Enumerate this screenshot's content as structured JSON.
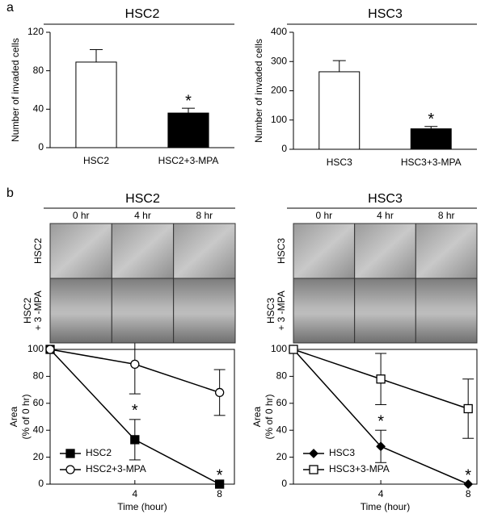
{
  "panel_labels": [
    "a",
    "b"
  ],
  "chart_data": [
    {
      "type": "bar",
      "title": "HSC2",
      "y_label": "Number of invaded cells",
      "categories": [
        "HSC2",
        "HSC2+3-MPA"
      ],
      "values": [
        89,
        36
      ],
      "errors": [
        13,
        5
      ],
      "colors": [
        "#ffffff",
        "#000000"
      ],
      "annotations": [
        null,
        "*"
      ],
      "ylim": [
        0,
        120
      ],
      "yticks": [
        0,
        40,
        80,
        120
      ]
    },
    {
      "type": "bar",
      "title": "HSC3",
      "y_label": "Number of invaded cells",
      "categories": [
        "HSC3",
        "HSC3+3-MPA"
      ],
      "values": [
        265,
        70
      ],
      "errors": [
        38,
        8
      ],
      "colors": [
        "#ffffff",
        "#000000"
      ],
      "annotations": [
        null,
        "*"
      ],
      "ylim": [
        0,
        400
      ],
      "yticks": [
        0,
        100,
        200,
        300,
        400
      ]
    },
    {
      "type": "line",
      "y_label": [
        "Area",
        "(% of 0 hr)"
      ],
      "x_label": "Time (hour)",
      "x": [
        0,
        4,
        8
      ],
      "xlim": [
        0,
        8.7
      ],
      "xticks": [
        4,
        8
      ],
      "ylim": [
        0,
        100
      ],
      "yticks": [
        0,
        20,
        40,
        60,
        80,
        100
      ],
      "legend": "lower left",
      "series": [
        {
          "name": "HSC2",
          "color": "#000000",
          "marker": "square",
          "filled": true,
          "values": [
            100,
            33,
            0
          ],
          "errors": [
            null,
            15,
            null
          ],
          "annotations": [
            null,
            "*",
            "*"
          ]
        },
        {
          "name": "HSC2+3-MPA",
          "color": "#000000",
          "marker": "circle",
          "filled": false,
          "values": [
            100,
            89,
            68
          ],
          "errors": [
            null,
            22,
            17
          ],
          "annotations": [
            null,
            null,
            null
          ]
        }
      ]
    },
    {
      "type": "line",
      "y_label": [
        "Area",
        "(% of 0 hr)"
      ],
      "x_label": "Time (hour)",
      "x": [
        0,
        4,
        8
      ],
      "xlim": [
        0,
        8.4
      ],
      "xticks": [
        4,
        8
      ],
      "ylim": [
        0,
        100
      ],
      "yticks": [
        0,
        20,
        40,
        60,
        80,
        100
      ],
      "legend": "lower left",
      "series": [
        {
          "name": "HSC3",
          "color": "#000000",
          "marker": "diamond",
          "filled": true,
          "values": [
            100,
            28,
            0
          ],
          "errors": [
            null,
            12,
            null
          ],
          "annotations": [
            null,
            "*",
            "*"
          ]
        },
        {
          "name": "HSC3+3-MPA",
          "color": "#000000",
          "marker": "square",
          "filled": false,
          "values": [
            100,
            78,
            56
          ],
          "errors": [
            null,
            19,
            22
          ],
          "annotations": [
            null,
            null,
            null
          ]
        }
      ]
    }
  ],
  "image_panels": [
    {
      "title": "HSC2",
      "columns": [
        "0 hr",
        "4 hr",
        "8 hr"
      ],
      "rows": [
        [
          "HSC2"
        ],
        [
          "HSC2",
          "+ 3 -MPA"
        ]
      ]
    },
    {
      "title": "HSC3",
      "columns": [
        "0 hr",
        "4 hr",
        "8 hr"
      ],
      "rows": [
        [
          "HSC3"
        ],
        [
          "HSC3",
          "+ 3 -MPA"
        ]
      ]
    }
  ]
}
